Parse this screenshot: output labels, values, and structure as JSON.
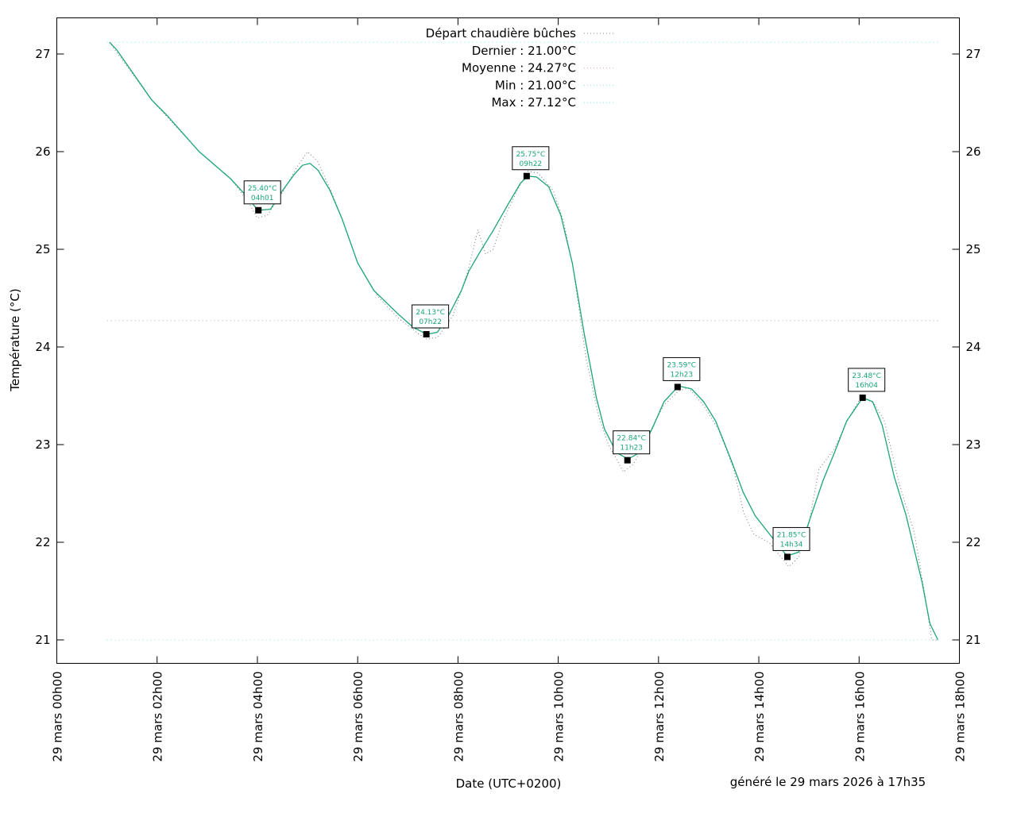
{
  "chart_data": {
    "type": "line",
    "title": "",
    "xlabel": "Date (UTC+0200)",
    "ylabel": "Température (°C)",
    "footer": "généré le 29 mars 2026 à 17h35",
    "xlim": [
      0,
      18
    ],
    "ylim": [
      20.76,
      27.37
    ],
    "x_unit": "hours since 29 mars 00h00",
    "x_ticks": [
      {
        "value": 0,
        "label": "29 mars 00h00"
      },
      {
        "value": 2,
        "label": "29 mars 02h00"
      },
      {
        "value": 4,
        "label": "29 mars 04h00"
      },
      {
        "value": 6,
        "label": "29 mars 06h00"
      },
      {
        "value": 8,
        "label": "29 mars 08h00"
      },
      {
        "value": 10,
        "label": "29 mars 10h00"
      },
      {
        "value": 12,
        "label": "29 mars 12h00"
      },
      {
        "value": 14,
        "label": "29 mars 14h00"
      },
      {
        "value": 16,
        "label": "29 mars 16h00"
      },
      {
        "value": 18,
        "label": "29 mars 18h00"
      }
    ],
    "y_ticks": [
      21,
      22,
      23,
      24,
      25,
      26,
      27
    ],
    "legend": {
      "placement": "top-center",
      "entries": [
        {
          "label": "Départ chaudière bûches",
          "color": "#888888"
        },
        {
          "label": "Dernier : 21.00°C",
          "color": "#ffffff"
        },
        {
          "label": "Moyenne : 24.27°C",
          "color": "#e0a0b8"
        },
        {
          "label": "Min : 21.00°C",
          "color": "#7fe8e8"
        },
        {
          "label": "Max : 27.12°C",
          "color": "#7fe8e8"
        }
      ]
    },
    "reference_lines": [
      {
        "name": "moyenne",
        "y": 24.27,
        "color": "#c8a0b0",
        "x": [
          1.0,
          17.6
        ]
      },
      {
        "name": "min",
        "y": 21.0,
        "color": "#7fe8e8",
        "x": [
          1.0,
          17.6
        ]
      },
      {
        "name": "max",
        "y": 27.12,
        "color": "#7fe8e8",
        "x": [
          1.0,
          17.6
        ]
      }
    ],
    "series": [
      {
        "name": "smoothed",
        "color": "#1aa57a",
        "x": [
          1.05,
          1.2,
          1.89,
          2.2,
          2.84,
          3.47,
          3.79,
          4.01,
          4.26,
          4.5,
          4.74,
          4.9,
          5.05,
          5.21,
          5.45,
          5.69,
          6.0,
          6.32,
          6.8,
          7.11,
          7.38,
          7.59,
          7.83,
          8.07,
          8.22,
          8.46,
          8.7,
          9.01,
          9.25,
          9.4,
          9.57,
          9.81,
          10.05,
          10.28,
          10.52,
          10.76,
          10.92,
          11.16,
          11.39,
          11.63,
          11.87,
          12.11,
          12.4,
          12.66,
          12.9,
          13.14,
          13.45,
          13.69,
          13.93,
          14.25,
          14.56,
          14.8,
          15.04,
          15.28,
          15.51,
          15.75,
          16.07,
          16.27,
          16.46,
          16.7,
          16.94,
          17.26,
          17.41,
          17.57
        ],
        "y": [
          27.12,
          27.04,
          26.53,
          26.37,
          26.0,
          25.72,
          25.54,
          25.4,
          25.41,
          25.6,
          25.77,
          25.86,
          25.88,
          25.81,
          25.6,
          25.31,
          24.86,
          24.58,
          24.34,
          24.2,
          24.13,
          24.15,
          24.34,
          24.58,
          24.78,
          24.99,
          25.19,
          25.47,
          25.68,
          25.75,
          25.74,
          25.64,
          25.35,
          24.86,
          24.13,
          23.48,
          23.16,
          22.92,
          22.85,
          22.92,
          23.16,
          23.44,
          23.6,
          23.57,
          23.44,
          23.24,
          22.84,
          22.51,
          22.27,
          22.06,
          21.86,
          21.9,
          22.27,
          22.63,
          22.92,
          23.24,
          23.48,
          23.44,
          23.2,
          22.67,
          22.27,
          21.58,
          21.17,
          21.0
        ]
      },
      {
        "name": "Départ chaudière bûches",
        "color": "#777777",
        "x": [
          1.05,
          1.89,
          2.84,
          3.47,
          3.8,
          4.0,
          4.2,
          4.5,
          4.8,
          5.0,
          5.2,
          5.45,
          5.7,
          6.0,
          6.4,
          6.8,
          7.2,
          7.38,
          7.6,
          7.9,
          8.2,
          8.4,
          8.55,
          8.7,
          8.9,
          9.2,
          9.4,
          9.6,
          9.9,
          10.1,
          10.3,
          10.55,
          10.8,
          11.0,
          11.3,
          11.5,
          11.8,
          12.1,
          12.4,
          12.6,
          12.9,
          13.2,
          13.5,
          13.7,
          13.9,
          14.2,
          14.6,
          14.8,
          15.0,
          15.2,
          15.5,
          15.8,
          16.05,
          16.3,
          16.5,
          16.8,
          17.1,
          17.3,
          17.45,
          17.57
        ],
        "y": [
          27.12,
          26.53,
          26.0,
          25.72,
          25.5,
          25.32,
          25.35,
          25.58,
          25.85,
          26.0,
          25.9,
          25.62,
          25.3,
          24.86,
          24.52,
          24.3,
          24.14,
          24.08,
          24.1,
          24.32,
          24.78,
          25.2,
          24.95,
          25.0,
          25.3,
          25.62,
          25.8,
          25.78,
          25.6,
          25.3,
          24.8,
          23.9,
          23.3,
          23.0,
          22.72,
          22.8,
          23.1,
          23.4,
          23.55,
          23.58,
          23.4,
          23.15,
          22.75,
          22.3,
          22.08,
          22.0,
          21.75,
          21.85,
          22.2,
          22.75,
          22.95,
          23.28,
          23.5,
          23.42,
          23.25,
          22.6,
          22.1,
          21.5,
          21.0,
          21.0
        ]
      }
    ],
    "annotations": [
      {
        "x": 4.02,
        "y": 25.4,
        "value": "25.40°C",
        "time": "04h01"
      },
      {
        "x": 7.37,
        "y": 24.13,
        "value": "24.13°C",
        "time": "07h22"
      },
      {
        "x": 9.37,
        "y": 25.75,
        "value": "25.75°C",
        "time": "09h22"
      },
      {
        "x": 11.38,
        "y": 22.84,
        "value": "22.84°C",
        "time": "11h23"
      },
      {
        "x": 12.38,
        "y": 23.59,
        "value": "23.59°C",
        "time": "12h23"
      },
      {
        "x": 14.57,
        "y": 21.85,
        "value": "21.85°C",
        "time": "14h34"
      },
      {
        "x": 16.07,
        "y": 23.48,
        "value": "23.48°C",
        "time": "16h04"
      }
    ]
  }
}
